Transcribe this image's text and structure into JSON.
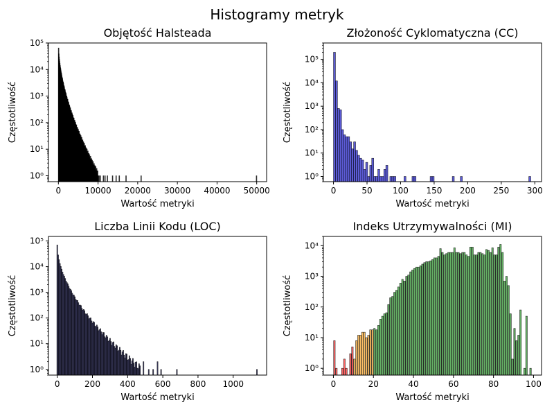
{
  "figure": {
    "title": "Histogramy metryk"
  },
  "colors": {
    "background": "#ffffff",
    "volume_bars": "#000000",
    "cc_bars": "#3333cc",
    "loc_bars": "#1a1a4d",
    "mi_low": "#ff6666",
    "mi_mid": "#ffc266",
    "mi_high": "#66b266"
  },
  "chart_data": [
    {
      "type": "bar",
      "title": "Objętość Halsteada",
      "xlabel": "Wartość metryki",
      "ylabel": "Częstotliwość",
      "yscale": "log",
      "xlim": [
        -2500,
        52500
      ],
      "ylim": [
        0.6,
        100000
      ],
      "xticks": [
        0,
        10000,
        20000,
        30000,
        40000,
        50000
      ],
      "xtick_labels": [
        "0",
        "10000",
        "20000",
        "30000",
        "40000",
        "50000"
      ],
      "yticks": [
        1,
        10,
        100,
        1000,
        10000,
        100000
      ],
      "ytick_labels": [
        "10⁰",
        "10¹",
        "10²",
        "10³",
        "10⁴",
        "10⁵"
      ],
      "bar_width": 60,
      "bar_color": "#000000",
      "bar_opacity": 0.7,
      "decay": {
        "x_start": 0,
        "x_end": 10000,
        "y_start": 65000,
        "y_end": 1.1,
        "step": 60,
        "shape": 0.6
      },
      "outliers": [
        [
          10200,
          1
        ],
        [
          10500,
          1
        ],
        [
          11300,
          1
        ],
        [
          11700,
          1
        ],
        [
          12300,
          1
        ],
        [
          13600,
          1
        ],
        [
          14500,
          1
        ],
        [
          15300,
          1
        ],
        [
          17000,
          1
        ],
        [
          20800,
          1
        ],
        [
          49900,
          1
        ]
      ]
    },
    {
      "type": "bar",
      "title": "Złożoność Cyklomatyczna (CC)",
      "xlabel": "Wartość metryki",
      "ylabel": "Częstotliwość",
      "yscale": "log",
      "xlim": [
        -15,
        310
      ],
      "ylim": [
        0.6,
        500000
      ],
      "xticks": [
        0,
        50,
        100,
        150,
        200,
        250,
        300
      ],
      "xtick_labels": [
        "0",
        "50",
        "100",
        "150",
        "200",
        "250",
        "300"
      ],
      "yticks": [
        1,
        10,
        100,
        1000,
        10000,
        100000
      ],
      "ytick_labels": [
        "10⁰",
        "10¹",
        "10²",
        "10³",
        "10⁴",
        "10⁵"
      ],
      "bar_width": 3,
      "bar_color": "#3333cc",
      "bar_opacity": 0.8,
      "bars": [
        [
          1.5,
          200000
        ],
        [
          4.5,
          12000
        ],
        [
          7.5,
          800
        ],
        [
          10.5,
          700
        ],
        [
          13.5,
          100
        ],
        [
          16.5,
          60
        ],
        [
          19.5,
          50
        ],
        [
          22.5,
          50
        ],
        [
          25.5,
          30
        ],
        [
          28.5,
          15
        ],
        [
          31.5,
          30
        ],
        [
          34.5,
          13
        ],
        [
          37.5,
          8
        ],
        [
          40.5,
          6
        ],
        [
          43.5,
          5
        ],
        [
          46.5,
          2
        ],
        [
          49.5,
          4
        ],
        [
          52.5,
          1
        ],
        [
          55.5,
          3
        ],
        [
          58.5,
          6
        ],
        [
          61.5,
          1
        ],
        [
          64.5,
          1
        ],
        [
          67.5,
          2
        ],
        [
          70.5,
          1
        ],
        [
          73.5,
          1
        ],
        [
          76.5,
          2
        ],
        [
          79.5,
          3
        ],
        [
          85.5,
          1
        ],
        [
          88.5,
          1
        ],
        [
          91.5,
          1
        ],
        [
          106.5,
          1
        ],
        [
          118.5,
          1
        ],
        [
          121.5,
          1
        ],
        [
          145.5,
          1
        ],
        [
          148.5,
          1
        ],
        [
          178.5,
          1
        ],
        [
          190.5,
          1
        ],
        [
          292.5,
          1
        ]
      ]
    },
    {
      "type": "bar",
      "title": "Liczba Linii Kodu (LOC)",
      "xlabel": "Wartość metryki",
      "ylabel": "Częstotliwość",
      "yscale": "log",
      "xlim": [
        -50,
        1190
      ],
      "ylim": [
        0.6,
        150000
      ],
      "xticks": [
        0,
        200,
        400,
        600,
        800,
        1000
      ],
      "xtick_labels": [
        "0",
        "200",
        "400",
        "600",
        "800",
        "1000"
      ],
      "yticks": [
        1,
        10,
        100,
        1000,
        10000,
        100000
      ],
      "ytick_labels": [
        "10⁰",
        "10¹",
        "10²",
        "10³",
        "10⁴",
        "10⁵"
      ],
      "bar_width": 5,
      "bar_color": "#1a1a4d",
      "bar_opacity": 0.8,
      "decay": {
        "x_start": 0,
        "x_end": 470,
        "y_start": 70000,
        "y_end": 1.2,
        "step": 5,
        "shape": 0.55
      },
      "outliers": [
        [
          490,
          2
        ],
        [
          520,
          1
        ],
        [
          545,
          1
        ],
        [
          570,
          2
        ],
        [
          590,
          1
        ],
        [
          680,
          1
        ],
        [
          1135,
          1
        ]
      ]
    },
    {
      "type": "bar",
      "title": "Indeks Utrzymywalności (MI)",
      "xlabel": "Wartość metryki",
      "ylabel": "Częstotliwość",
      "yscale": "log",
      "xlim": [
        -5,
        104
      ],
      "ylim": [
        0.6,
        20000
      ],
      "xticks": [
        0,
        20,
        40,
        60,
        80,
        100
      ],
      "xtick_labels": [
        "0",
        "20",
        "40",
        "60",
        "80",
        "100"
      ],
      "yticks": [
        1,
        10,
        100,
        1000,
        10000
      ],
      "ytick_labels": [
        "10⁰",
        "10¹",
        "10²",
        "10³",
        "10⁴"
      ],
      "bar_width": 0.8,
      "bar_opacity": 1,
      "bars": [
        [
          0.5,
          8,
          "#ff6666"
        ],
        [
          1.5,
          1,
          "#ff6666"
        ],
        [
          4.5,
          1,
          "#ff6666"
        ],
        [
          5.5,
          2,
          "#ff6666"
        ],
        [
          6.5,
          1,
          "#ff6666"
        ],
        [
          8.5,
          3,
          "#ff6666"
        ],
        [
          9.5,
          5,
          "#ff6666"
        ],
        [
          10.5,
          2,
          "#ffc266"
        ],
        [
          11.5,
          8,
          "#ffc266"
        ],
        [
          12.5,
          12,
          "#ffc266"
        ],
        [
          13.5,
          12,
          "#ffc266"
        ],
        [
          14.5,
          15,
          "#ffc266"
        ],
        [
          15.5,
          15,
          "#ffc266"
        ],
        [
          16.5,
          10,
          "#ffc266"
        ],
        [
          17.5,
          12,
          "#ffc266"
        ],
        [
          18.5,
          18,
          "#ffc266"
        ],
        [
          19.5,
          18,
          "#ffc266"
        ],
        [
          20.5,
          20,
          "#66b266"
        ],
        [
          21.5,
          18,
          "#66b266"
        ],
        [
          22.5,
          25,
          "#66b266"
        ],
        [
          23.5,
          40,
          "#66b266"
        ],
        [
          24.5,
          50,
          "#66b266"
        ],
        [
          25.5,
          60,
          "#66b266"
        ],
        [
          26.5,
          65,
          "#66b266"
        ],
        [
          27.5,
          120,
          "#66b266"
        ],
        [
          28.5,
          200,
          "#66b266"
        ],
        [
          29.5,
          220,
          "#66b266"
        ],
        [
          30.5,
          300,
          "#66b266"
        ],
        [
          31.5,
          350,
          "#66b266"
        ],
        [
          32.5,
          450,
          "#66b266"
        ],
        [
          33.5,
          600,
          "#66b266"
        ],
        [
          34.5,
          800,
          "#66b266"
        ],
        [
          35.5,
          700,
          "#66b266"
        ],
        [
          36.5,
          1000,
          "#66b266"
        ],
        [
          37.5,
          1100,
          "#66b266"
        ],
        [
          38.5,
          1400,
          "#66b266"
        ],
        [
          39.5,
          1600,
          "#66b266"
        ],
        [
          40.5,
          1800,
          "#66b266"
        ],
        [
          41.5,
          2000,
          "#66b266"
        ],
        [
          42.5,
          2000,
          "#66b266"
        ],
        [
          43.5,
          2200,
          "#66b266"
        ],
        [
          44.5,
          2500,
          "#66b266"
        ],
        [
          45.5,
          2800,
          "#66b266"
        ],
        [
          46.5,
          3000,
          "#66b266"
        ],
        [
          47.5,
          3000,
          "#66b266"
        ],
        [
          48.5,
          3200,
          "#66b266"
        ],
        [
          49.5,
          3500,
          "#66b266"
        ],
        [
          50.5,
          4000,
          "#66b266"
        ],
        [
          51.5,
          4000,
          "#66b266"
        ],
        [
          52.5,
          4500,
          "#66b266"
        ],
        [
          53.5,
          8000,
          "#66b266"
        ],
        [
          54.5,
          6000,
          "#66b266"
        ],
        [
          55.5,
          5000,
          "#66b266"
        ],
        [
          56.5,
          5500,
          "#66b266"
        ],
        [
          57.5,
          6000,
          "#66b266"
        ],
        [
          58.5,
          6000,
          "#66b266"
        ],
        [
          59.5,
          6000,
          "#66b266"
        ],
        [
          60.5,
          8500,
          "#66b266"
        ],
        [
          61.5,
          6000,
          "#66b266"
        ],
        [
          62.5,
          6000,
          "#66b266"
        ],
        [
          63.5,
          5500,
          "#66b266"
        ],
        [
          64.5,
          6000,
          "#66b266"
        ],
        [
          65.5,
          6000,
          "#66b266"
        ],
        [
          66.5,
          5000,
          "#66b266"
        ],
        [
          67.5,
          4500,
          "#66b266"
        ],
        [
          68.5,
          9000,
          "#66b266"
        ],
        [
          69.5,
          9000,
          "#66b266"
        ],
        [
          70.5,
          5000,
          "#66b266"
        ],
        [
          71.5,
          5000,
          "#66b266"
        ],
        [
          72.5,
          6000,
          "#66b266"
        ],
        [
          73.5,
          6000,
          "#66b266"
        ],
        [
          74.5,
          5500,
          "#66b266"
        ],
        [
          75.5,
          5000,
          "#66b266"
        ],
        [
          76.5,
          7500,
          "#66b266"
        ],
        [
          77.5,
          7000,
          "#66b266"
        ],
        [
          78.5,
          6000,
          "#66b266"
        ],
        [
          79.5,
          8500,
          "#66b266"
        ],
        [
          80.5,
          5000,
          "#66b266"
        ],
        [
          81.5,
          5000,
          "#66b266"
        ],
        [
          82.5,
          9000,
          "#66b266"
        ],
        [
          83.5,
          11000,
          "#66b266"
        ],
        [
          84.5,
          6000,
          "#66b266"
        ],
        [
          85.5,
          700,
          "#66b266"
        ],
        [
          86.5,
          1000,
          "#66b266"
        ],
        [
          87.5,
          500,
          "#66b266"
        ],
        [
          88.5,
          60,
          "#66b266"
        ],
        [
          89.5,
          2,
          "#66b266"
        ],
        [
          90.5,
          20,
          "#66b266"
        ],
        [
          91.5,
          8,
          "#66b266"
        ],
        [
          92.5,
          12,
          "#66b266"
        ],
        [
          93.5,
          80,
          "#66b266"
        ],
        [
          95.5,
          1,
          "#66b266"
        ],
        [
          96.5,
          50,
          "#66b266"
        ],
        [
          98.5,
          1,
          "#66b266"
        ]
      ]
    }
  ]
}
